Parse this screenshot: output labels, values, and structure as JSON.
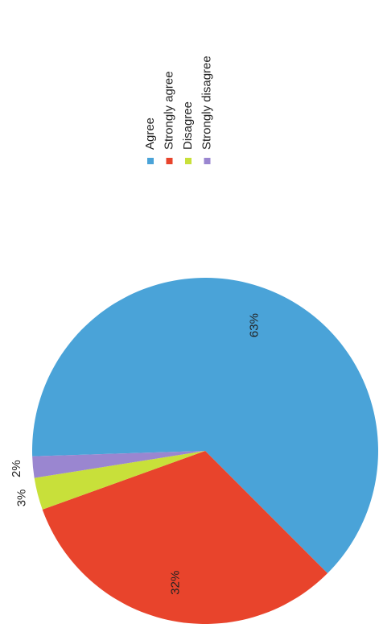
{
  "chart_data": {
    "type": "pie",
    "categories": [
      "Agree",
      "Strongly agree",
      "Disagree",
      "Strongly disagree"
    ],
    "values": [
      63,
      32,
      3,
      2
    ],
    "value_labels": [
      "63%",
      "32%",
      "3%",
      "2%"
    ],
    "colors": [
      "#4aa3d8",
      "#e8442c",
      "#c8e03a",
      "#9a86d0"
    ],
    "legend": "top"
  }
}
